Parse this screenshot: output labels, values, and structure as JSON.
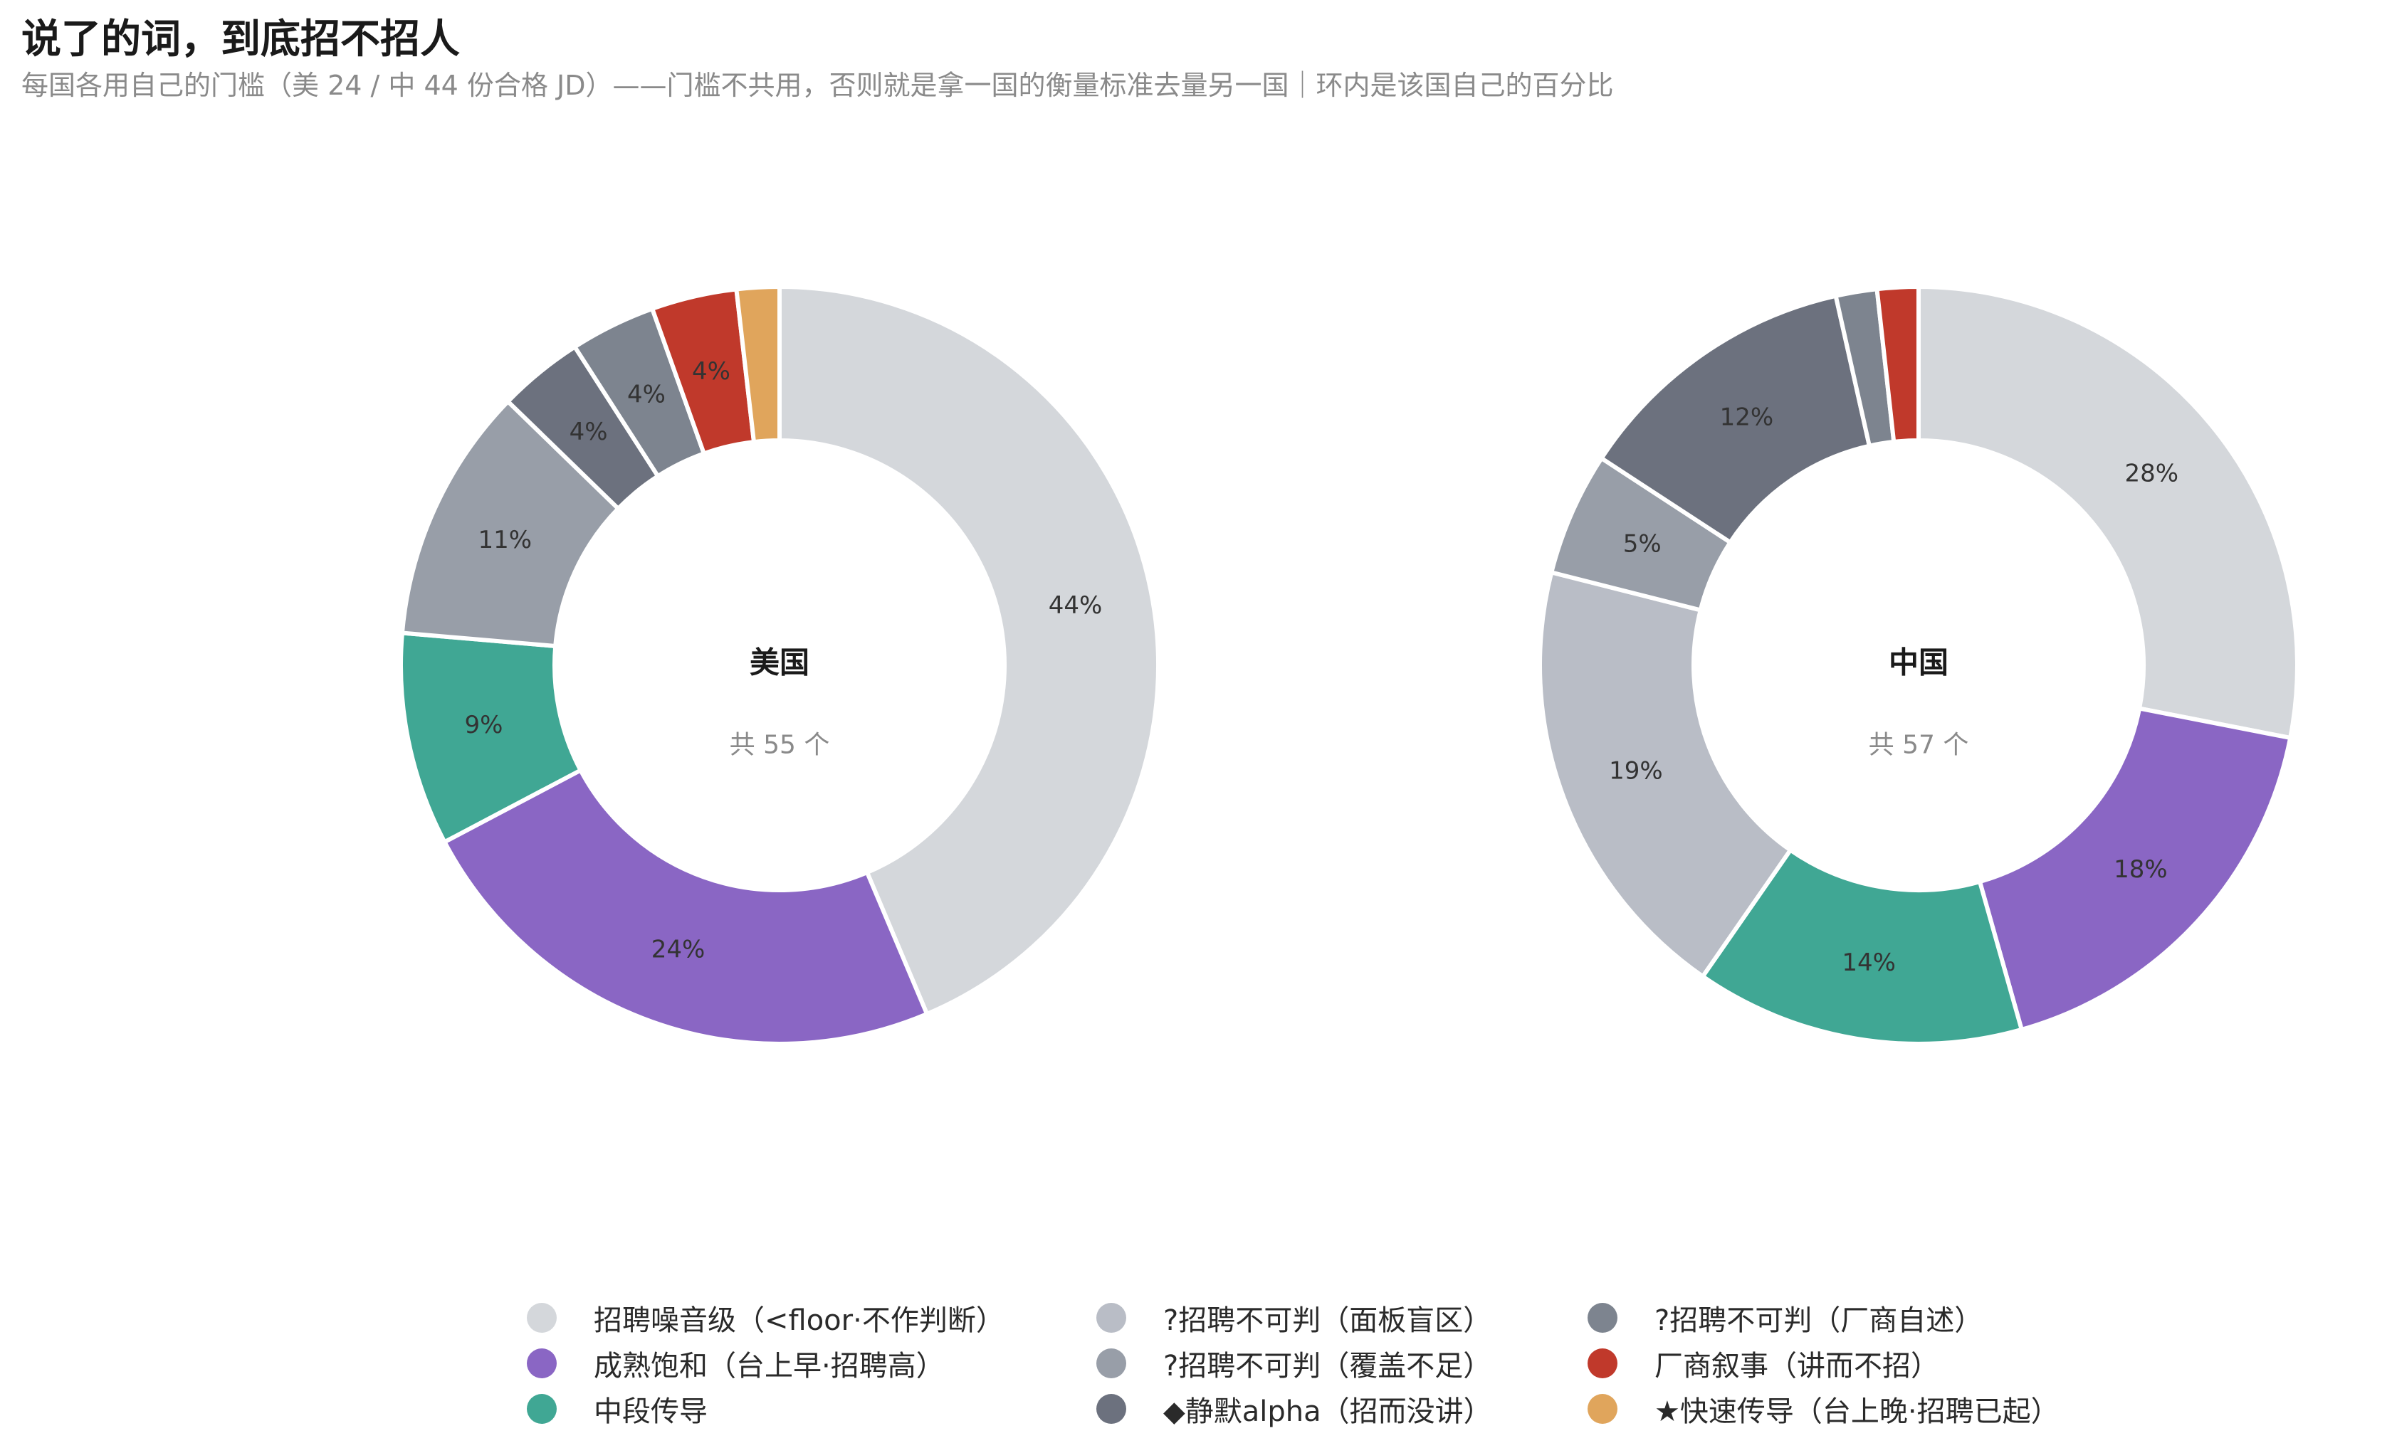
{
  "title": "说了的词，到底招不招人",
  "subtitle": "每国各用自己的门槛（美 24 / 中 44 份合格 JD）——门槛不共用，否则就是拿一国的衡量标准去量另一国｜环内是该国自己的百分比",
  "categories": [
    {
      "label": "招聘噪音级（<floor·不作判断）",
      "color": "#d4d7db"
    },
    {
      "label": "成熟饱和（台上早·招聘高）",
      "color": "#8a66c4"
    },
    {
      "label": "中段传导",
      "color": "#40a794"
    },
    {
      "label": "?招聘不可判（面板盲区）",
      "color": "#b9bdc6"
    },
    {
      "label": "?招聘不可判（覆盖不足）",
      "color": "#989ea8"
    },
    {
      "label": "◆静默alpha（招而没讲）",
      "color": "#6c717e"
    },
    {
      "label": "?招聘不可判（厂商自述）",
      "color": "#7d848f"
    },
    {
      "label": "厂商叙事（讲而不招）",
      "color": "#c0392b"
    },
    {
      "label": "★快速传导（台上晚·招聘已起）",
      "color": "#e0a55c"
    }
  ],
  "chart_data": [
    {
      "type": "pie",
      "donut": true,
      "name": "美国",
      "total_label": "共 55 个",
      "slices": [
        {
          "category": "招聘噪音级（<floor·不作判断）",
          "value": 24,
          "label": "44%"
        },
        {
          "category": "成熟饱和（台上早·招聘高）",
          "value": 13,
          "label": "24%"
        },
        {
          "category": "中段传导",
          "value": 5,
          "label": "9%"
        },
        {
          "category": "?招聘不可判（覆盖不足）",
          "value": 6,
          "label": "11%"
        },
        {
          "category": "◆静默alpha（招而没讲）",
          "value": 2,
          "label": "4%"
        },
        {
          "category": "?招聘不可判（厂商自述）",
          "value": 2,
          "label": "4%"
        },
        {
          "category": "厂商叙事（讲而不招）",
          "value": 2,
          "label": "4%"
        },
        {
          "category": "★快速传导（台上晚·招聘已起）",
          "value": 1,
          "label": ""
        }
      ]
    },
    {
      "type": "pie",
      "donut": true,
      "name": "中国",
      "total_label": "共 57 个",
      "slices": [
        {
          "category": "招聘噪音级（<floor·不作判断）",
          "value": 16,
          "label": "28%"
        },
        {
          "category": "成熟饱和（台上早·招聘高）",
          "value": 10,
          "label": "18%"
        },
        {
          "category": "中段传导",
          "value": 8,
          "label": "14%"
        },
        {
          "category": "?招聘不可判（面板盲区）",
          "value": 11,
          "label": "19%"
        },
        {
          "category": "?招聘不可判（覆盖不足）",
          "value": 3,
          "label": "5%"
        },
        {
          "category": "◆静默alpha（招而没讲）",
          "value": 7,
          "label": "12%"
        },
        {
          "category": "?招聘不可判（厂商自述）",
          "value": 1,
          "label": ""
        },
        {
          "category": "厂商叙事（讲而不招）",
          "value": 1,
          "label": ""
        }
      ]
    }
  ]
}
